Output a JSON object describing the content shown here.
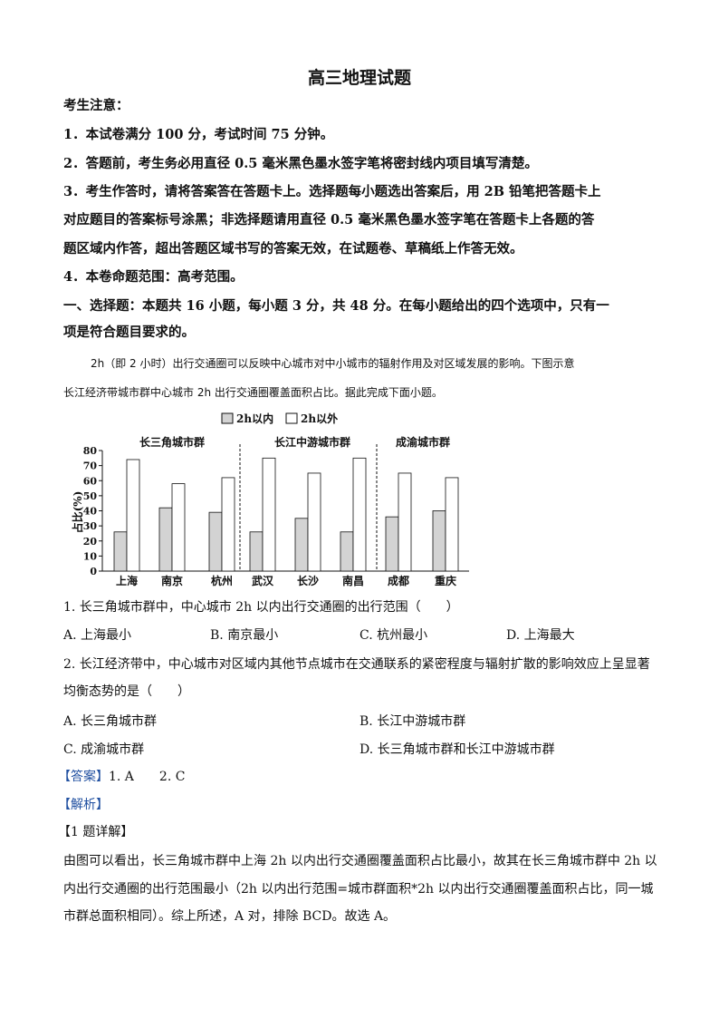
{
  "title": "高三地理试题",
  "notice": {
    "heading": "考生注意：",
    "items": [
      "1．本试卷满分 100 分，考试时间 75 分钟。",
      "2．答题前，考生务必用直径 0.5 毫米黑色墨水签字笔将密封线内项目填写清楚。",
      "3．考生作答时，请将答案答在答题卡上。选择题每小题选出答案后，用 2B 铅笔把答题卡上",
      "对应题目的答案标号涂黑；非选择题请用直径 0.5 毫米黑色墨水签字笔在答题卡上各题的答",
      "题区域内作答，超出答题区域书写的答案无效，在试题卷、草稿纸上作答无效。",
      "4．本卷命题范围：高考范围。"
    ]
  },
  "section": [
    "一、选择题：本题共 16 小题，每小题 3 分，共 48 分。在每小题给出的四个选项中，只有一",
    "项是符合题目要求的。"
  ],
  "stem": [
    "2h（即 2 小时）出行交通圈可以反映中心城市对中小城市的辐射作用及对区域发展的影响。下图示意",
    "长江经济带城市群中心城市 2h 出行交通圈覆盖面积占比。据此完成下面小题。"
  ],
  "chart_data": {
    "type": "bar",
    "categories": [
      "上海",
      "南京",
      "杭州",
      "武汉",
      "长沙",
      "南昌",
      "成都",
      "重庆"
    ],
    "groups": [
      {
        "label": "长三角城市群",
        "categories": [
          "上海",
          "南京",
          "杭州"
        ]
      },
      {
        "label": "长江中游城市群",
        "categories": [
          "武汉",
          "长沙",
          "南昌"
        ]
      },
      {
        "label": "成渝城市群",
        "categories": [
          "成都",
          "重庆"
        ]
      }
    ],
    "series": [
      {
        "name": "2h以内",
        "values": [
          26,
          42,
          39,
          26,
          35,
          26,
          36,
          40
        ],
        "color": "#d3d3d3"
      },
      {
        "name": "2h以外",
        "values": [
          74,
          58,
          62,
          75,
          65,
          75,
          65,
          62
        ],
        "color": "#ffffff"
      }
    ],
    "ylabel": "占比(%)",
    "ylim": [
      0,
      80
    ],
    "yticks": [
      "0",
      "10",
      "20",
      "30",
      "40",
      "50",
      "60",
      "70",
      "80"
    ],
    "legend_position": "top",
    "grid": false
  },
  "q1": {
    "stem": "1. 长三角城市群中，中心城市 2h 以内出行交通圈的出行范围（　　）",
    "options": [
      "A. 上海最小",
      "B. 南京最小",
      "C. 杭州最小",
      "D. 上海最大"
    ]
  },
  "q2": {
    "stem": [
      "2. 长江经济带中，中心城市对区域内其他节点城市在交通联系的紧密程度与辐射扩散的影响效应上呈显著",
      "均衡态势的是（　　）"
    ],
    "options": [
      "A. 长三角城市群",
      "B. 长江中游城市群",
      "C. 成渝城市群",
      "D. 长三角城市群和长江中游城市群"
    ]
  },
  "answer": {
    "label": "【答案】",
    "text": "1. A　　2. C"
  },
  "analysis": {
    "label": "【解析】"
  },
  "detail1": {
    "label": "【1 题详解】",
    "lines": [
      "由图可以看出，长三角城市群中上海 2h 以内出行交通圈覆盖面积占比最小，故其在长三角城市群中 2h 以",
      "内出行交通圈的出行范围最小（2h 以内出行范围=城市群面积*2h 以内出行交通圈覆盖面积占比，同一城",
      "市群总面积相同）。综上所述，A 对，排除 BCD。故选 A。"
    ]
  }
}
